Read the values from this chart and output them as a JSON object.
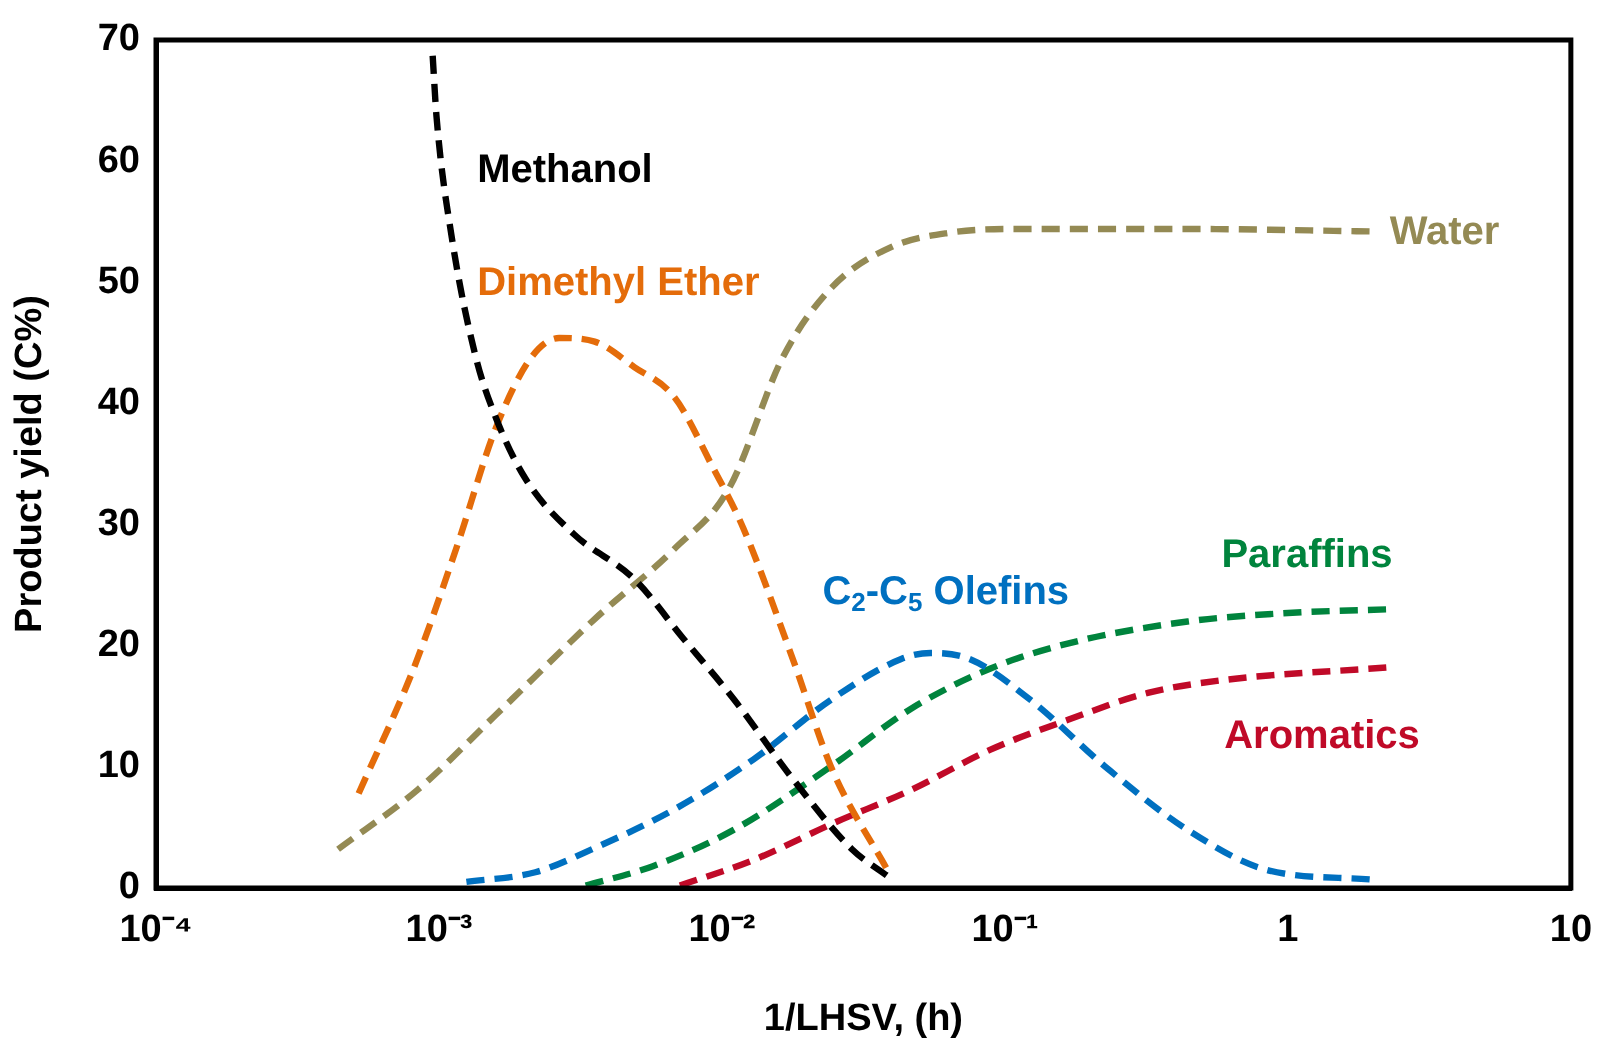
{
  "chart_data": {
    "type": "line",
    "xlabel": "1/LHSV, (h)",
    "ylabel": "Product yield (C%)",
    "log": "x",
    "xlim": [
      0.0001,
      10
    ],
    "xticks": [
      {
        "value": 0.0001,
        "label": "10⁻⁴"
      },
      {
        "value": 0.001,
        "label": "10⁻³"
      },
      {
        "value": 0.01,
        "label": "10⁻²"
      },
      {
        "value": 0.1,
        "label": "10⁻¹"
      },
      1,
      10
    ],
    "ylim": [
      0,
      70
    ],
    "yticks": [
      0,
      10,
      20,
      30,
      40,
      50,
      60,
      70
    ],
    "line_style": "dashed",
    "marker": "none",
    "series": [
      {
        "name": "Methanol",
        "color": "#000000",
        "x": [
          0.00095,
          0.00098,
          0.00111,
          0.00135,
          0.00159,
          0.00202,
          0.003,
          0.0049,
          0.0073,
          0.011,
          0.0178,
          0.0288,
          0.0384
        ],
        "values": [
          68.7,
          63.7,
          53.7,
          43.8,
          38.8,
          33.8,
          29.2,
          25.5,
          20.6,
          15.6,
          9,
          3.2,
          1
        ]
      },
      {
        "name": "Dimethyl Ether",
        "color": "#e46c0a",
        "x": [
          0.00052,
          0.00081,
          0.00115,
          0.00159,
          0.00212,
          0.00266,
          0.00355,
          0.0049,
          0.0068,
          0.0093,
          0.0119,
          0.0178,
          0.0245,
          0.0384
        ],
        "values": [
          7.8,
          18,
          28,
          38,
          43.8,
          45.4,
          45.1,
          43,
          40.5,
          34.7,
          29.7,
          18.9,
          9.8,
          1.5
        ]
      },
      {
        "name": "Water",
        "color": "#948a54",
        "x": [
          0.00044,
          0.00084,
          0.00159,
          0.00355,
          0.0068,
          0.0106,
          0.0164,
          0.0245,
          0.0396,
          0.0641,
          0.104,
          0.442,
          1.97
        ],
        "values": [
          3.2,
          8.1,
          14.3,
          22.2,
          28,
          33,
          43.8,
          49.6,
          52.9,
          54.1,
          54.4,
          54.4,
          54.2
        ]
      },
      {
        "name": "C$_{2}$-C$_{5}$ Olefins",
        "color": "#0070c0",
        "x": [
          0.00125,
          0.00219,
          0.00355,
          0.0068,
          0.0129,
          0.0245,
          0.043,
          0.0546,
          0.075,
          0.122,
          0.232,
          0.442,
          0.84,
          1.97
        ],
        "values": [
          0.5,
          1.3,
          3.3,
          6.5,
          10.6,
          15.6,
          18.9,
          19.4,
          18.9,
          15.6,
          9.8,
          4.8,
          1.5,
          0.7
        ]
      },
      {
        "name": "Paraffins",
        "color": "#00843d",
        "x": [
          0.0033,
          0.0057,
          0.011,
          0.0245,
          0.0466,
          0.0885,
          0.168,
          0.442,
          1,
          2.23
        ],
        "values": [
          0.2,
          1.8,
          4.8,
          10.1,
          14.8,
          18.1,
          20.2,
          22,
          22.7,
          23
        ]
      },
      {
        "name": "Aromatics",
        "color": "#c00a28",
        "x": [
          0.0071,
          0.0129,
          0.0245,
          0.0466,
          0.0885,
          0.168,
          0.32,
          0.61,
          2.23
        ],
        "values": [
          0.2,
          2.3,
          5.3,
          8.1,
          11.4,
          13.9,
          16.1,
          17.2,
          18.2
        ]
      }
    ]
  }
}
